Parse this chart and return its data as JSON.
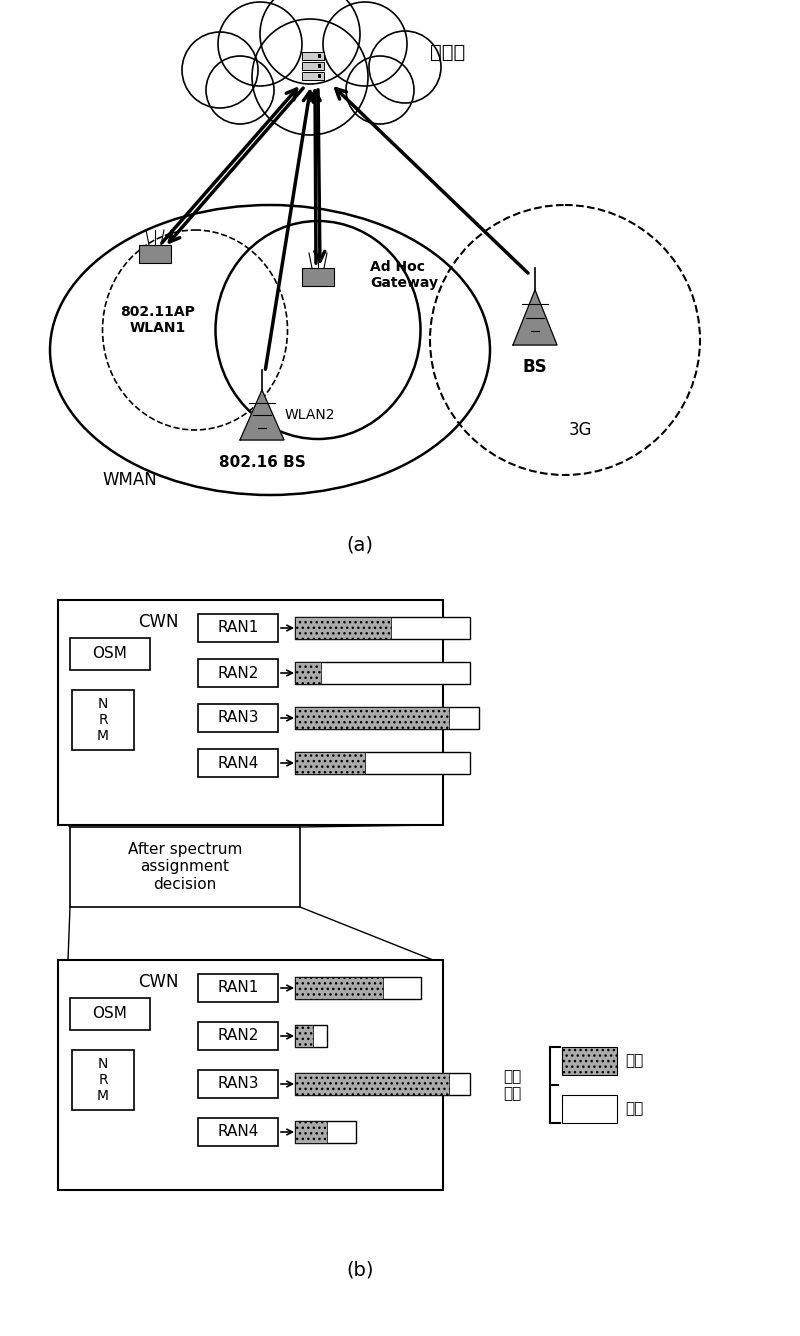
{
  "bg_color": "#ffffff",
  "cloud_text": "核心网",
  "part_a_label": "(a)",
  "part_b_label": "(b)",
  "upper_box": {
    "bars_before": [
      {
        "used": 0.55,
        "total": 1.0,
        "label": "RAN1"
      },
      {
        "used": 0.15,
        "total": 1.0,
        "label": "RAN2"
      },
      {
        "used": 0.88,
        "total": 1.05,
        "label": "RAN3"
      },
      {
        "used": 0.4,
        "total": 1.0,
        "label": "RAN4"
      }
    ]
  },
  "lower_box": {
    "bars_after": [
      {
        "used": 0.5,
        "total": 0.72,
        "label": "RAN1"
      },
      {
        "used": 0.1,
        "total": 0.18,
        "label": "RAN2"
      },
      {
        "used": 0.88,
        "total": 1.0,
        "label": "RAN3"
      },
      {
        "used": 0.18,
        "total": 0.35,
        "label": "RAN4"
      }
    ]
  },
  "label_after": "After spectrum\nassignment\ndecision",
  "legend_used": "已用",
  "legend_unused": "未用",
  "legend_title": "分配\n结果",
  "gray_color": "#aaaaaa",
  "dark_gray": "#888888"
}
